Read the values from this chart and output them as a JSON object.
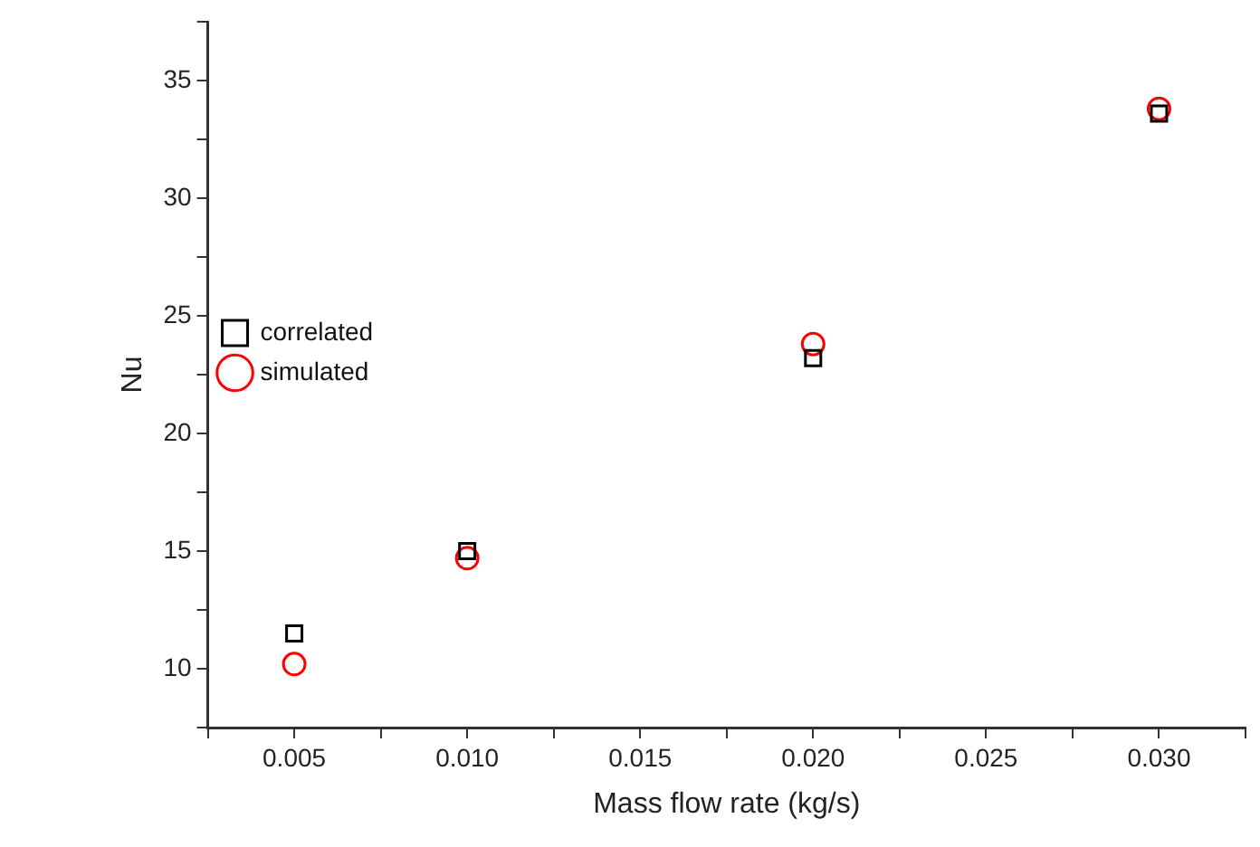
{
  "chart_data": {
    "type": "scatter",
    "xlabel": "Mass flow rate (kg/s)",
    "ylabel": "Nu",
    "x": [
      0.005,
      0.01,
      0.02,
      0.03
    ],
    "series": [
      {
        "name": "correlated",
        "color": "#000000",
        "marker": "square",
        "values": [
          11.5,
          15.0,
          23.2,
          33.6
        ]
      },
      {
        "name": "simulated",
        "color": "#ff0000",
        "marker": "circle",
        "values": [
          10.2,
          14.7,
          23.8,
          33.8
        ]
      }
    ],
    "xlim": [
      0.0025,
      0.0325
    ],
    "xticks": [
      {
        "value": 0.0025,
        "label": null
      },
      {
        "value": 0.005,
        "label": "0.005"
      },
      {
        "value": 0.0075,
        "label": null
      },
      {
        "value": 0.01,
        "label": "0.010"
      },
      {
        "value": 0.0125,
        "label": null
      },
      {
        "value": 0.015,
        "label": "0.015"
      },
      {
        "value": 0.0175,
        "label": null
      },
      {
        "value": 0.02,
        "label": "0.020"
      },
      {
        "value": 0.0225,
        "label": null
      },
      {
        "value": 0.025,
        "label": "0.025"
      },
      {
        "value": 0.0275,
        "label": null
      },
      {
        "value": 0.03,
        "label": "0.030"
      },
      {
        "value": 0.0325,
        "label": null
      }
    ],
    "ylim": [
      7.5,
      37.5
    ],
    "yticks": [
      {
        "value": 7.5,
        "label": null
      },
      10,
      {
        "value": 12.5,
        "label": null
      },
      15,
      {
        "value": 17.5,
        "label": null
      },
      20,
      {
        "value": 22.5,
        "label": null
      },
      25,
      {
        "value": 27.5,
        "label": null
      },
      30,
      {
        "value": 32.5,
        "label": null
      },
      35,
      {
        "value": 37.5,
        "label": null
      }
    ],
    "grid": false,
    "legend": "top"
  }
}
